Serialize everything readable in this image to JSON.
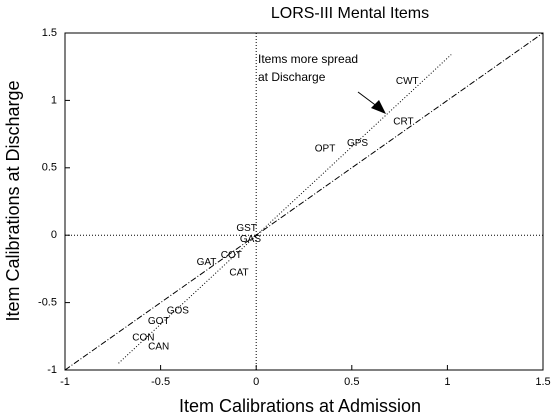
{
  "chart_data": {
    "type": "scatter",
    "title": "LORS-III Mental Items",
    "x_label": "Item Calibrations at Admission",
    "y_label": "Item Calibrations at Discharge",
    "annotations": [
      "Items more spread",
      "at Discharge"
    ],
    "xlim": [
      -1,
      1.5
    ],
    "ylim": [
      -1,
      1.5
    ],
    "xticks": [
      -1,
      -0.5,
      0,
      0.5,
      1,
      1.5
    ],
    "yticks": [
      -1,
      -0.5,
      0,
      0.5,
      1,
      1.5
    ],
    "zero_lines": true,
    "points": {
      "labels": [
        "CWT",
        "CRT",
        "GPS",
        "OPT",
        "GST",
        "GAS",
        "COT",
        "GAT",
        "CAT",
        "GOS",
        "GOT",
        "CON",
        "CAN"
      ],
      "x": [
        0.79,
        0.77,
        0.53,
        0.36,
        -0.05,
        -0.03,
        -0.13,
        -0.26,
        -0.09,
        -0.41,
        -0.51,
        -0.59,
        -0.51
      ],
      "y": [
        1.14,
        0.84,
        0.68,
        0.64,
        0.05,
        -0.03,
        -0.15,
        -0.2,
        -0.28,
        -0.56,
        -0.64,
        -0.76,
        -0.83
      ],
      "color": "#000000"
    },
    "lines": [
      {
        "x": [
          -1,
          1.5
        ],
        "y": [
          -1,
          1.5
        ],
        "dash": "dashdot",
        "color": "#000000"
      },
      {
        "x": [
          -0.72,
          1.02
        ],
        "y": [
          -0.95,
          1.34
        ],
        "dash": "dotted",
        "color": "#000000"
      }
    ]
  }
}
